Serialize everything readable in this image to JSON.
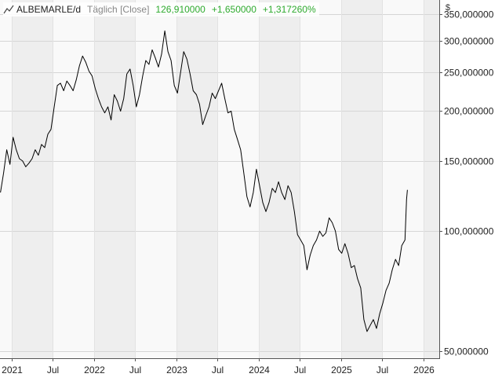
{
  "header": {
    "symbol": "ALBEMARLE/d",
    "period": "Täglich [Close]",
    "last": "126,910000",
    "change": "+1,650000",
    "change_pct": "+1,317260%",
    "currency": "$",
    "icon": "line-chart-icon",
    "positive_color": "#2eaa2e"
  },
  "chart_data": {
    "type": "line",
    "title": "ALBEMARLE/d",
    "xlabel": "",
    "ylabel": "$",
    "yscale": "log",
    "ylim": [
      48,
      380
    ],
    "xlim": [
      "2020-11-10",
      "2026-03-10"
    ],
    "grid": true,
    "y_ticks": [
      {
        "value": 50,
        "label": "50,000000"
      },
      {
        "value": 100,
        "label": "100,000000"
      },
      {
        "value": 150,
        "label": "150,000000"
      },
      {
        "value": 200,
        "label": "200,000000"
      },
      {
        "value": 250,
        "label": "250,000000"
      },
      {
        "value": 300,
        "label": "300,000000"
      },
      {
        "value": 350,
        "label": "350,000000"
      }
    ],
    "x_ticks": [
      {
        "date": "2021-01-01",
        "label": "2021"
      },
      {
        "date": "2021-07-01",
        "label": "Jul"
      },
      {
        "date": "2022-01-01",
        "label": "2022"
      },
      {
        "date": "2022-07-01",
        "label": "Jul"
      },
      {
        "date": "2023-01-01",
        "label": "2023"
      },
      {
        "date": "2023-07-01",
        "label": "Jul"
      },
      {
        "date": "2024-01-01",
        "label": "2024"
      },
      {
        "date": "2024-07-01",
        "label": "Jul"
      },
      {
        "date": "2025-01-01",
        "label": "2025"
      },
      {
        "date": "2025-07-01",
        "label": "Jul"
      },
      {
        "date": "2026-01-01",
        "label": "2026"
      }
    ],
    "series": [
      {
        "color": "#000000",
        "points": [
          [
            "2020-11-12",
            125
          ],
          [
            "2020-11-26",
            140
          ],
          [
            "2020-12-10",
            160
          ],
          [
            "2020-12-24",
            147
          ],
          [
            "2021-01-07",
            172
          ],
          [
            "2021-01-21",
            160
          ],
          [
            "2021-02-04",
            152
          ],
          [
            "2021-02-18",
            150
          ],
          [
            "2021-03-04",
            145
          ],
          [
            "2021-03-18",
            148
          ],
          [
            "2021-04-01",
            152
          ],
          [
            "2021-04-15",
            160
          ],
          [
            "2021-04-29",
            155
          ],
          [
            "2021-05-13",
            165
          ],
          [
            "2021-05-27",
            162
          ],
          [
            "2021-06-10",
            175
          ],
          [
            "2021-06-24",
            180
          ],
          [
            "2021-07-08",
            205
          ],
          [
            "2021-07-22",
            232
          ],
          [
            "2021-08-05",
            235
          ],
          [
            "2021-08-19",
            225
          ],
          [
            "2021-09-02",
            238
          ],
          [
            "2021-09-16",
            232
          ],
          [
            "2021-09-30",
            225
          ],
          [
            "2021-10-14",
            240
          ],
          [
            "2021-10-28",
            260
          ],
          [
            "2021-11-11",
            275
          ],
          [
            "2021-11-25",
            265
          ],
          [
            "2021-12-09",
            252
          ],
          [
            "2021-12-23",
            245
          ],
          [
            "2022-01-06",
            228
          ],
          [
            "2022-01-20",
            215
          ],
          [
            "2022-02-03",
            205
          ],
          [
            "2022-02-17",
            198
          ],
          [
            "2022-03-03",
            205
          ],
          [
            "2022-03-17",
            190
          ],
          [
            "2022-03-31",
            220
          ],
          [
            "2022-04-14",
            212
          ],
          [
            "2022-04-28",
            200
          ],
          [
            "2022-05-12",
            215
          ],
          [
            "2022-05-26",
            248
          ],
          [
            "2022-06-09",
            255
          ],
          [
            "2022-06-23",
            232
          ],
          [
            "2022-07-07",
            205
          ],
          [
            "2022-07-21",
            220
          ],
          [
            "2022-08-04",
            245
          ],
          [
            "2022-08-18",
            268
          ],
          [
            "2022-09-01",
            262
          ],
          [
            "2022-09-15",
            285
          ],
          [
            "2022-09-29",
            272
          ],
          [
            "2022-10-13",
            258
          ],
          [
            "2022-10-27",
            278
          ],
          [
            "2022-11-10",
            318
          ],
          [
            "2022-11-24",
            282
          ],
          [
            "2022-12-08",
            268
          ],
          [
            "2022-12-22",
            232
          ],
          [
            "2023-01-05",
            222
          ],
          [
            "2023-01-19",
            250
          ],
          [
            "2023-02-02",
            282
          ],
          [
            "2023-02-16",
            270
          ],
          [
            "2023-03-02",
            248
          ],
          [
            "2023-03-16",
            225
          ],
          [
            "2023-03-30",
            220
          ],
          [
            "2023-04-13",
            208
          ],
          [
            "2023-04-27",
            185
          ],
          [
            "2023-05-11",
            195
          ],
          [
            "2023-05-25",
            205
          ],
          [
            "2023-06-08",
            222
          ],
          [
            "2023-06-22",
            215
          ],
          [
            "2023-07-06",
            225
          ],
          [
            "2023-07-20",
            235
          ],
          [
            "2023-08-03",
            215
          ],
          [
            "2023-08-17",
            198
          ],
          [
            "2023-08-31",
            200
          ],
          [
            "2023-09-14",
            180
          ],
          [
            "2023-09-28",
            170
          ],
          [
            "2023-10-12",
            160
          ],
          [
            "2023-10-26",
            140
          ],
          [
            "2023-11-09",
            122
          ],
          [
            "2023-11-23",
            115
          ],
          [
            "2023-12-07",
            125
          ],
          [
            "2023-12-21",
            143
          ],
          [
            "2024-01-04",
            130
          ],
          [
            "2024-01-18",
            118
          ],
          [
            "2024-02-01",
            112
          ],
          [
            "2024-02-15",
            118
          ],
          [
            "2024-02-29",
            128
          ],
          [
            "2024-03-14",
            125
          ],
          [
            "2024-03-28",
            133
          ],
          [
            "2024-04-11",
            125
          ],
          [
            "2024-04-25",
            120
          ],
          [
            "2024-05-09",
            130
          ],
          [
            "2024-05-23",
            125
          ],
          [
            "2024-06-06",
            112
          ],
          [
            "2024-06-20",
            98
          ],
          [
            "2024-07-04",
            95
          ],
          [
            "2024-07-18",
            92
          ],
          [
            "2024-08-01",
            80
          ],
          [
            "2024-08-15",
            87
          ],
          [
            "2024-08-29",
            92
          ],
          [
            "2024-09-12",
            95
          ],
          [
            "2024-09-26",
            100
          ],
          [
            "2024-10-10",
            97
          ],
          [
            "2024-10-24",
            99
          ],
          [
            "2024-11-07",
            108
          ],
          [
            "2024-11-21",
            105
          ],
          [
            "2024-12-05",
            100
          ],
          [
            "2024-12-19",
            90
          ],
          [
            "2025-01-02",
            88
          ],
          [
            "2025-01-16",
            93
          ],
          [
            "2025-01-30",
            88
          ],
          [
            "2025-02-13",
            81
          ],
          [
            "2025-02-27",
            82
          ],
          [
            "2025-03-13",
            76
          ],
          [
            "2025-03-27",
            72
          ],
          [
            "2025-04-10",
            60
          ],
          [
            "2025-04-24",
            56
          ],
          [
            "2025-05-08",
            58
          ],
          [
            "2025-05-22",
            60
          ],
          [
            "2025-06-05",
            57
          ],
          [
            "2025-06-19",
            62
          ],
          [
            "2025-07-03",
            66
          ],
          [
            "2025-07-17",
            71
          ],
          [
            "2025-07-31",
            74
          ],
          [
            "2025-08-14",
            80
          ],
          [
            "2025-08-28",
            85
          ],
          [
            "2025-09-11",
            82
          ],
          [
            "2025-09-25",
            92
          ],
          [
            "2025-10-09",
            95
          ],
          [
            "2025-10-16",
            120
          ],
          [
            "2025-10-20",
            126.91
          ]
        ]
      }
    ]
  }
}
